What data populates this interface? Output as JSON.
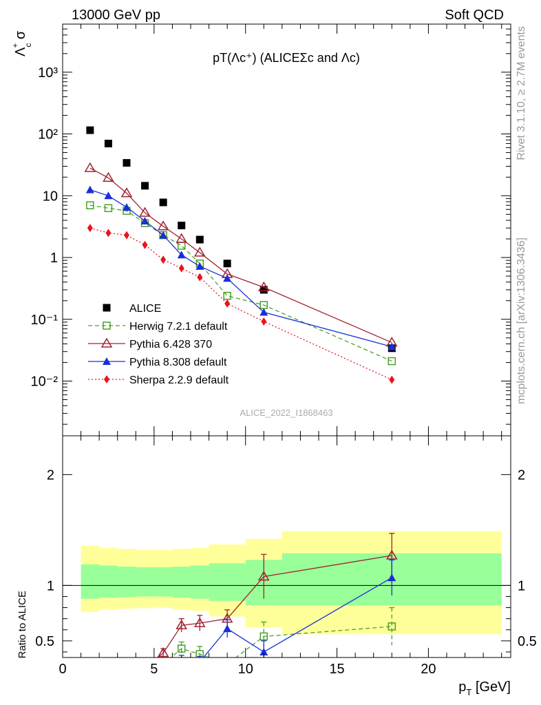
{
  "header": {
    "left": "13000 GeV pp",
    "right": "Soft QCD"
  },
  "side_labels": {
    "rivet": "Rivet 3.1.10, ≥ 2.7M events",
    "mcplots": "mcplots.cern.ch [arXiv:1306.3436]"
  },
  "chart_data": [
    {
      "type": "line",
      "title": "pT(Λc⁺) (ALICEΣc and Λc)",
      "ylabel": "Λc⁺ σ",
      "ylabel_parts": {
        "main": "Λ",
        "sup": "+",
        "sub": "c",
        "tail": " σ"
      },
      "xlabel": "",
      "xscale": "linear",
      "yscale": "log",
      "xlim": [
        0,
        24.5
      ],
      "ylim": [
        0.0013,
        6000
      ],
      "ytick_labels": [
        "10⁻²",
        "10⁻¹",
        "1",
        "10",
        "10²",
        "10³"
      ],
      "watermark": "ALICE_2022_I1868463",
      "legend_position": "bottom-left",
      "series": [
        {
          "name": "ALICE",
          "color": "#000000",
          "marker": "square-filled",
          "line": "none",
          "x": [
            1.5,
            2.5,
            3.5,
            4.5,
            5.5,
            6.5,
            7.5,
            9,
            11,
            18
          ],
          "y": [
            115,
            70,
            34,
            14.5,
            7.8,
            3.3,
            1.95,
            0.8,
            0.3,
            0.034
          ]
        },
        {
          "name": "Herwig 7.2.1 default",
          "color": "#4aa028",
          "marker": "square-open",
          "line": "dashed",
          "x": [
            1.5,
            2.5,
            3.5,
            4.5,
            5.5,
            6.5,
            7.5,
            9,
            11,
            18
          ],
          "y": [
            7.0,
            6.3,
            5.7,
            3.6,
            2.3,
            1.55,
            0.8,
            0.24,
            0.17,
            0.021
          ]
        },
        {
          "name": "Pythia 6.428 370",
          "color": "#a02030",
          "marker": "triangle-open",
          "line": "solid",
          "x": [
            1.5,
            2.5,
            3.5,
            4.5,
            5.5,
            6.5,
            7.5,
            9,
            11,
            18
          ],
          "y": [
            28,
            19.5,
            11,
            5.3,
            3.2,
            2.0,
            1.2,
            0.54,
            0.33,
            0.042
          ]
        },
        {
          "name": "Pythia 8.308 default",
          "color": "#1a2ed8",
          "marker": "triangle-filled",
          "line": "solid",
          "x": [
            1.5,
            2.5,
            3.5,
            4.5,
            5.5,
            6.5,
            7.5,
            9,
            11,
            18
          ],
          "y": [
            12.5,
            10,
            6.5,
            3.9,
            2.3,
            1.1,
            0.72,
            0.46,
            0.13,
            0.036
          ]
        },
        {
          "name": "Sherpa 2.2.9 default",
          "color": "#e8141e",
          "marker": "diamond-filled",
          "line": "dotted",
          "x": [
            1.5,
            2.5,
            3.5,
            4.5,
            5.5,
            6.5,
            7.5,
            9,
            11,
            18
          ],
          "y": [
            3.0,
            2.5,
            2.3,
            1.6,
            0.92,
            0.67,
            0.48,
            0.18,
            0.092,
            0.0105
          ]
        }
      ]
    },
    {
      "type": "line",
      "title": "",
      "ylabel": "Ratio to ALICE",
      "xlabel": "pT [GeV]",
      "xlabel_parts": {
        "main": "p",
        "sub": "T",
        "tail": " [GeV]"
      },
      "xlim": [
        0,
        24.5
      ],
      "ylim": [
        0.35,
        2.35
      ],
      "xtick_labels": [
        "0",
        "5",
        "10",
        "15",
        "20"
      ],
      "ytick_labels": [
        "0.5",
        "1",
        "2"
      ],
      "reference_line": 1,
      "bands": {
        "edges": [
          1,
          2,
          3,
          4,
          5,
          6,
          7,
          8,
          10,
          12,
          24
        ],
        "outer_low": [
          0.76,
          0.78,
          0.79,
          0.795,
          0.8,
          0.78,
          0.77,
          0.72,
          0.62,
          0.56
        ],
        "outer_high": [
          1.36,
          1.34,
          1.33,
          1.32,
          1.32,
          1.33,
          1.34,
          1.37,
          1.42,
          1.49
        ],
        "inner_low": [
          0.88,
          0.89,
          0.895,
          0.9,
          0.9,
          0.89,
          0.88,
          0.86,
          0.82,
          0.82
        ],
        "inner_high": [
          1.19,
          1.18,
          1.17,
          1.165,
          1.165,
          1.17,
          1.18,
          1.2,
          1.23,
          1.29
        ],
        "outer_color": "#ffff99",
        "inner_color": "#99ff99"
      },
      "series": [
        {
          "name": "Herwig 7.2.1 default",
          "color": "#4aa028",
          "marker": "square-open",
          "line": "dashed",
          "x": [
            5.5,
            6.5,
            7.5,
            9,
            11,
            18
          ],
          "y": [
            0.29,
            0.43,
            0.38,
            0.29,
            0.54,
            0.63
          ],
          "err": [
            0.03,
            0.06,
            0.07,
            0.05,
            0.13,
            0.17
          ]
        },
        {
          "name": "Pythia 6.428 370",
          "color": "#a02030",
          "marker": "triangle-open",
          "line": "solid",
          "x": [
            4.5,
            5.5,
            6.5,
            7.5,
            9,
            11,
            18
          ],
          "y": [
            0.26,
            0.39,
            0.64,
            0.66,
            0.7,
            1.08,
            1.27
          ],
          "err": [
            0.03,
            0.04,
            0.06,
            0.07,
            0.08,
            0.2,
            0.2
          ]
        },
        {
          "name": "Pythia 8.308 default",
          "color": "#1a2ed8",
          "marker": "triangle-filled",
          "line": "solid",
          "x": [
            6.5,
            7.5,
            9,
            11,
            18
          ],
          "y": [
            0.33,
            0.31,
            0.61,
            0.4,
            1.07
          ],
          "err": [
            0.04,
            0.05,
            0.08,
            0.1,
            0.16
          ]
        }
      ]
    }
  ]
}
